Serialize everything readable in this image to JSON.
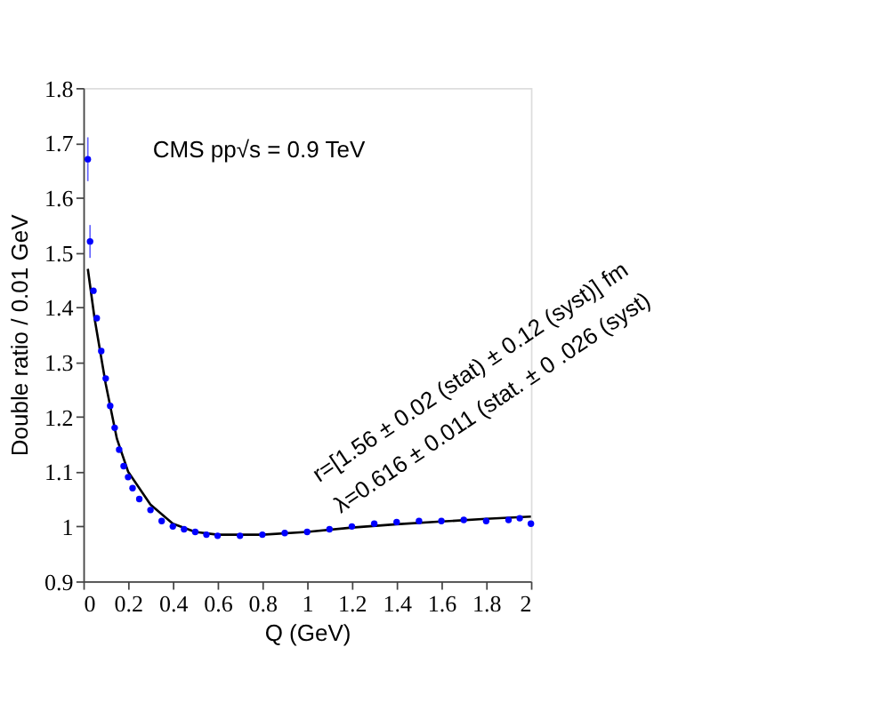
{
  "chart_data": {
    "type": "scatter",
    "xlabel": "Q (GeV)",
    "ylabel": "Double ratio / 0.01 GeV",
    "annotations": [
      "CMS pp√s = 0.9 TeV",
      "r=[1.56 ± 0.02 (stat) ± 0.12 (syst)] fm",
      "λ=0.616 ± 0.011 (stat. ± 0 .026 (syst)"
    ],
    "xlim": [
      0,
      2
    ],
    "xticks": [
      0,
      0.2,
      0.4,
      0.6,
      0.8,
      1,
      1.2,
      1.4,
      1.6,
      1.8,
      2
    ],
    "ylim": [
      0.9,
      1.8
    ],
    "yticks": [
      0.9,
      1,
      1.1,
      1.2,
      1.3,
      1.4,
      1.5,
      1.6,
      1.7,
      1.8
    ],
    "grid": false,
    "series": [
      {
        "color": "#0000ff",
        "marker": "circle",
        "x": [
          0.02,
          0.03,
          0.045,
          0.06,
          0.08,
          0.1,
          0.12,
          0.14,
          0.16,
          0.18,
          0.2,
          0.22,
          0.25,
          0.3,
          0.35,
          0.4,
          0.45,
          0.5,
          0.55,
          0.6,
          0.7,
          0.8,
          0.9,
          1.0,
          1.1,
          1.2,
          1.3,
          1.4,
          1.5,
          1.6,
          1.7,
          1.8,
          1.9,
          1.95,
          2.0
        ],
        "values": [
          1.67,
          1.52,
          1.43,
          1.38,
          1.32,
          1.27,
          1.22,
          1.18,
          1.14,
          1.11,
          1.09,
          1.07,
          1.05,
          1.03,
          1.01,
          1.0,
          0.995,
          0.99,
          0.985,
          0.983,
          0.983,
          0.985,
          0.988,
          0.99,
          0.995,
          1.0,
          1.005,
          1.008,
          1.01,
          1.01,
          1.012,
          1.01,
          1.012,
          1.015,
          1.005
        ],
        "errors": [
          0.04,
          0.03,
          null,
          null,
          null,
          null,
          null,
          null,
          null,
          null,
          null,
          null,
          null,
          null,
          null,
          null,
          null,
          null,
          null,
          null,
          null,
          null,
          null,
          null,
          null,
          null,
          null,
          null,
          null,
          null,
          null,
          null,
          null,
          null,
          null
        ]
      },
      {
        "type": "line",
        "color": "#000000",
        "line_style": "solid",
        "x": [
          0.02,
          0.05,
          0.1,
          0.15,
          0.2,
          0.3,
          0.4,
          0.5,
          0.6,
          0.8,
          1.0,
          1.2,
          1.4,
          1.6,
          1.8,
          2.0
        ],
        "values": [
          1.47,
          1.38,
          1.26,
          1.16,
          1.1,
          1.04,
          1.005,
          0.99,
          0.985,
          0.985,
          0.99,
          0.998,
          1.004,
          1.009,
          1.014,
          1.018
        ]
      }
    ]
  }
}
